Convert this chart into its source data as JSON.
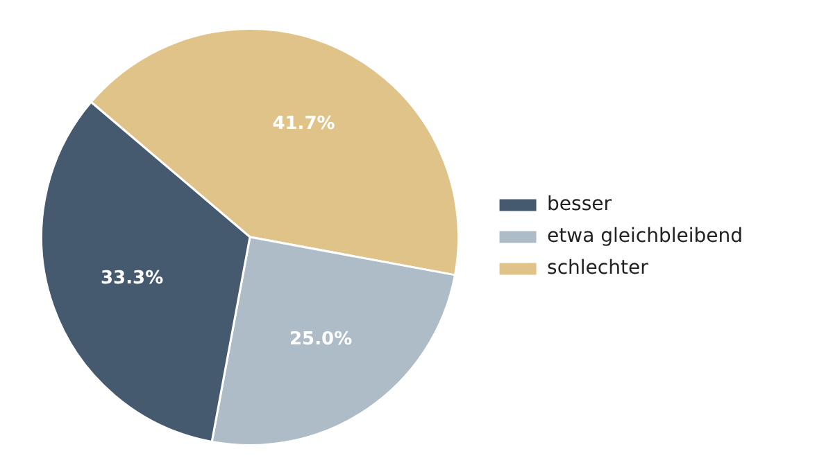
{
  "chart_data": {
    "type": "pie",
    "categories": [
      "besser",
      "etwa gleichbleibend",
      "schlechter"
    ],
    "values": [
      33.3,
      25.0,
      41.7
    ],
    "colors": [
      "#455a6e",
      "#adbcc7",
      "#e0c388"
    ],
    "value_labels": [
      "33.3%",
      "25.0%",
      "41.7%"
    ],
    "legend": "right"
  }
}
